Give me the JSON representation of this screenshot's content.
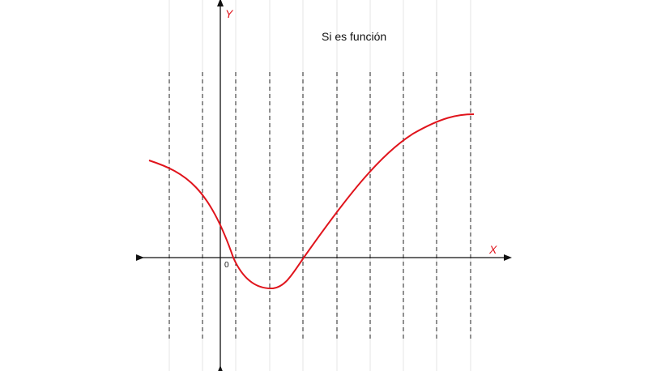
{
  "title": "Si es función",
  "axes": {
    "x_label": "X",
    "y_label": "Y",
    "origin_label": "0"
  },
  "colors": {
    "curve": "#e0141c",
    "axis": "#111111",
    "axis_label": "#e0141c",
    "dashed_line": "#222222",
    "grid_line": "#e6e6e6"
  }
}
